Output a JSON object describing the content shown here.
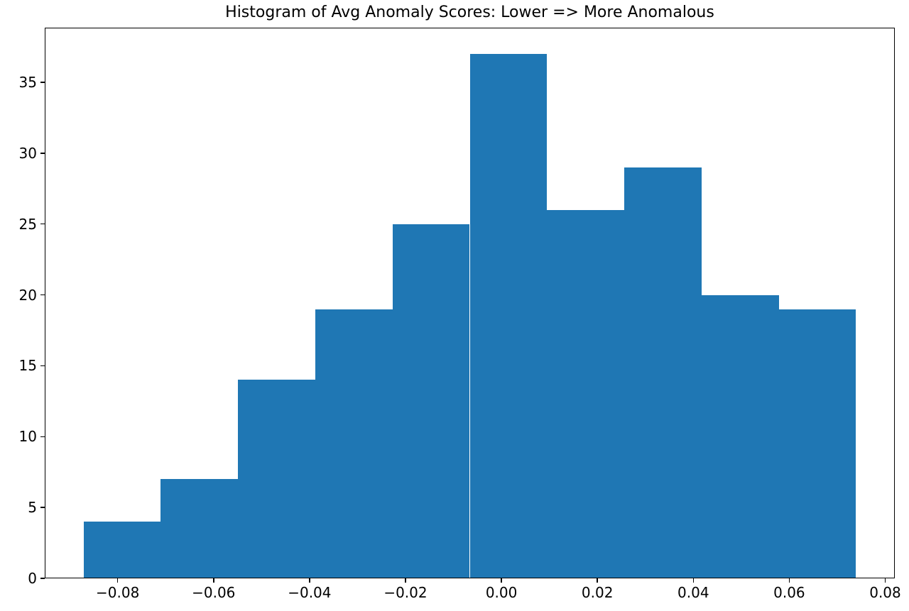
{
  "chart_data": {
    "type": "bar",
    "subtype": "histogram",
    "title": "Histogram of Avg Anomaly Scores: Lower => More Anomalous",
    "xlabel": "",
    "ylabel": "",
    "grid": false,
    "background_color": "#ffffff",
    "bar_color": "#1f77b4",
    "spine_color": "#000000",
    "xlim": [
      -0.0952,
      0.082
    ],
    "ylim": [
      0,
      38.85
    ],
    "bin_edges": [
      -0.0871,
      -0.071,
      -0.0549,
      -0.0388,
      -0.0227,
      -0.0066,
      0.0095,
      0.0256,
      0.0417,
      0.0578,
      0.0739
    ],
    "counts": [
      4,
      7,
      14,
      19,
      25,
      37,
      26,
      29,
      20,
      19
    ],
    "x_ticks": [
      {
        "value": -0.08,
        "label": "−0.08"
      },
      {
        "value": -0.06,
        "label": "−0.06"
      },
      {
        "value": -0.04,
        "label": "−0.04"
      },
      {
        "value": -0.02,
        "label": "−0.02"
      },
      {
        "value": 0.0,
        "label": "0.00"
      },
      {
        "value": 0.02,
        "label": "0.02"
      },
      {
        "value": 0.04,
        "label": "0.04"
      },
      {
        "value": 0.06,
        "label": "0.06"
      },
      {
        "value": 0.08,
        "label": "0.08"
      }
    ],
    "y_ticks": [
      {
        "value": 0,
        "label": "0"
      },
      {
        "value": 5,
        "label": "5"
      },
      {
        "value": 10,
        "label": "10"
      },
      {
        "value": 15,
        "label": "15"
      },
      {
        "value": 20,
        "label": "20"
      },
      {
        "value": 25,
        "label": "25"
      },
      {
        "value": 30,
        "label": "30"
      },
      {
        "value": 35,
        "label": "35"
      }
    ]
  }
}
